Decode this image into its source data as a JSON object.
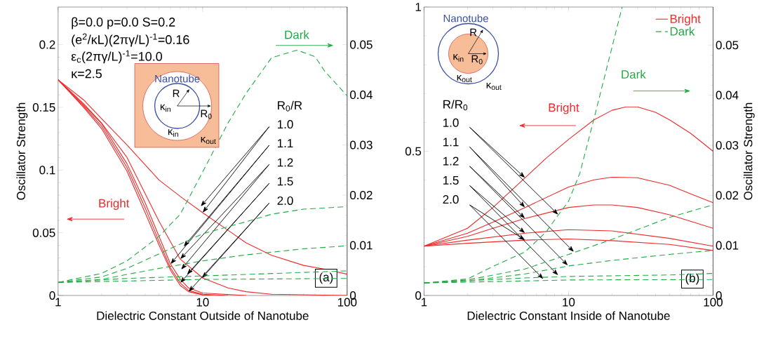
{
  "chart_data": [
    {
      "type": "line",
      "xlabel": "Dielectric Constant Outside of Nanotube",
      "ylabel": "Oscillator Strength",
      "log": "x",
      "xlim": [
        1,
        100
      ],
      "xticks": [
        1,
        10,
        100
      ],
      "ylim": [
        0,
        0.23
      ],
      "yticks": [
        0,
        0.05,
        0.1,
        0.15,
        0.2
      ],
      "y2lim": [
        0,
        0.0575
      ],
      "y2ticks": [
        0,
        0.01,
        0.02,
        0.03,
        0.04,
        0.05
      ],
      "series": [
        {
          "color": "#ee2a2a",
          "line_style": "solid",
          "x": [
            1,
            1.5,
            2,
            3,
            5,
            7,
            10,
            15,
            20,
            30,
            50,
            70,
            100
          ],
          "values": [
            0.172,
            0.156,
            0.141,
            0.12,
            0.092,
            0.079,
            0.066,
            0.052,
            0.042,
            0.032,
            0.024,
            0.021,
            0.017
          ]
        },
        {
          "color": "#ee2a2a",
          "line_style": "solid",
          "x": [
            1,
            1.5,
            2,
            3,
            5,
            7,
            10,
            15,
            20,
            30,
            100
          ],
          "values": [
            0.172,
            0.153,
            0.1375,
            0.11,
            0.059,
            0.029,
            0.014,
            0.006,
            0.003,
            0.001,
            0
          ]
        },
        {
          "color": "#ee2a2a",
          "line_style": "solid",
          "x": [
            1,
            1.5,
            2,
            3,
            4,
            5,
            6,
            7,
            8,
            10,
            20
          ],
          "values": [
            0.172,
            0.152,
            0.137,
            0.105,
            0.074,
            0.047,
            0.025,
            0.013,
            0.006,
            0.002,
            0
          ]
        },
        {
          "color": "#ee2a2a",
          "line_style": "solid",
          "x": [
            1,
            1.5,
            2,
            3,
            4,
            5,
            6,
            7,
            8,
            10,
            15
          ],
          "values": [
            0.172,
            0.151,
            0.135,
            0.102,
            0.07,
            0.043,
            0.022,
            0.01,
            0.004,
            0.001,
            0
          ]
        },
        {
          "color": "#ee2a2a",
          "line_style": "solid",
          "x": [
            1,
            1.5,
            2,
            3,
            4,
            5,
            6,
            7,
            8,
            10,
            12
          ],
          "values": [
            0.172,
            0.15,
            0.133,
            0.099,
            0.066,
            0.04,
            0.02,
            0.008,
            0.003,
            0.0005,
            0
          ]
        },
        {
          "color": "#22aa44",
          "line_style": "dashed",
          "axis": "y2",
          "x": [
            1,
            2,
            3,
            5,
            7,
            10,
            15,
            20,
            30,
            45,
            60,
            70,
            100
          ],
          "values": [
            0.0026,
            0.0044,
            0.0069,
            0.0118,
            0.0162,
            0.0246,
            0.0344,
            0.0403,
            0.0474,
            0.0489,
            0.0476,
            0.0447,
            0.0398
          ]
        },
        {
          "color": "#22aa44",
          "line_style": "dashed",
          "axis": "y2",
          "x": [
            1,
            2,
            3,
            5,
            10,
            20,
            30,
            50,
            100
          ],
          "values": [
            0.0026,
            0.0037,
            0.0054,
            0.0083,
            0.0123,
            0.0147,
            0.0162,
            0.0172,
            0.0177
          ]
        },
        {
          "color": "#22aa44",
          "line_style": "dashed",
          "axis": "y2",
          "x": [
            1,
            2,
            3,
            5,
            10,
            20,
            50,
            100
          ],
          "values": [
            0.0026,
            0.0032,
            0.0042,
            0.0054,
            0.0069,
            0.0081,
            0.0093,
            0.0099
          ]
        },
        {
          "color": "#22aa44",
          "line_style": "dashed",
          "axis": "y2",
          "x": [
            1,
            3,
            10,
            100
          ],
          "values": [
            0.0026,
            0.0034,
            0.0039,
            0.0049
          ]
        },
        {
          "color": "#22aa44",
          "line_style": "dashed",
          "axis": "y2",
          "x": [
            1,
            10,
            100
          ],
          "values": [
            0.0026,
            0.0032,
            0.0034
          ]
        }
      ],
      "annotations": [
        "β=0.0 p=0.0 S=0.2",
        "(e$^{2}$/κL)(2πγ/L)$^{-1}$=0.16",
        "ε$_{c}$(2πγ/L)$^{-1}$=10.0",
        "κ=2.5",
        "Nanotube",
        "R",
        "R$_{0}$",
        "κ$_{in}$",
        "κ$_{in}$",
        "κ$_{out}$",
        "R$_{0}$/R",
        {
          "text": "1.0",
          "x": 10,
          "y": 0.066
        },
        {
          "text": "1.1",
          "x": 6,
          "y": 0.025
        },
        {
          "text": "1.2",
          "x": 7,
          "y": 0.029
        },
        {
          "text": "1.5",
          "x": 7,
          "y": 0.01
        },
        {
          "text": "2.0",
          "x": 8,
          "y": 0.003
        },
        "Bright",
        "Dark",
        "(a)"
      ]
    },
    {
      "type": "line",
      "xlabel": "Dielectric Constant Inside of Nanotube",
      "y2label": "Oscillator Strength",
      "log": "x",
      "legend": "top right",
      "xlim": [
        1,
        100
      ],
      "xticks": [
        1,
        10,
        100
      ],
      "ylim": [
        0,
        1
      ],
      "yticks": [
        0,
        0.5,
        1
      ],
      "y2lim": [
        0,
        0.0576
      ],
      "y2ticks": [
        0,
        0.01,
        0.02,
        0.03,
        0.04,
        0.05
      ],
      "series": [
        {
          "name": "Bright",
          "color": "#ee2a2a",
          "line_style": "solid",
          "x": [
            1,
            2,
            3,
            5,
            7,
            10,
            15,
            20,
            25,
            30,
            40,
            50,
            70,
            100
          ],
          "values": [
            0.171,
            0.233,
            0.305,
            0.408,
            0.476,
            0.541,
            0.609,
            0.642,
            0.654,
            0.654,
            0.635,
            0.609,
            0.562,
            0.5
          ]
        },
        {
          "color": "#ee2a2a",
          "line_style": "solid",
          "x": [
            1,
            2,
            3,
            5,
            10,
            15,
            20,
            30,
            50,
            70,
            100
          ],
          "values": [
            0.171,
            0.216,
            0.254,
            0.305,
            0.376,
            0.401,
            0.41,
            0.408,
            0.382,
            0.352,
            0.322
          ]
        },
        {
          "color": "#ee2a2a",
          "line_style": "solid",
          "x": [
            1,
            2,
            3,
            5,
            10,
            15,
            20,
            30,
            50,
            100
          ],
          "values": [
            0.171,
            0.205,
            0.233,
            0.267,
            0.305,
            0.314,
            0.314,
            0.305,
            0.28,
            0.233
          ]
        },
        {
          "color": "#ee2a2a",
          "line_style": "solid",
          "x": [
            1,
            2,
            5,
            10,
            20,
            50,
            100
          ],
          "values": [
            0.171,
            0.192,
            0.216,
            0.228,
            0.224,
            0.198,
            0.171
          ]
        },
        {
          "color": "#ee2a2a",
          "line_style": "solid",
          "x": [
            1,
            2,
            5,
            10,
            20,
            50,
            100
          ],
          "values": [
            0.171,
            0.181,
            0.192,
            0.196,
            0.19,
            0.177,
            0.156
          ]
        },
        {
          "name": "Dark",
          "color": "#22aa44",
          "line_style": "dashed",
          "axis": "y2",
          "x": [
            1,
            2,
            3,
            5,
            7,
            8.5,
            10,
            12,
            15,
            20,
            23.5
          ],
          "values": [
            0.0025,
            0.0033,
            0.0058,
            0.0087,
            0.0127,
            0.0161,
            0.0188,
            0.0245,
            0.0353,
            0.0496,
            0.0576
          ]
        },
        {
          "color": "#22aa44",
          "line_style": "dashed",
          "axis": "y2",
          "x": [
            1,
            2,
            5,
            10,
            20,
            50,
            100
          ],
          "values": [
            0.0025,
            0.0031,
            0.0053,
            0.0082,
            0.0112,
            0.0156,
            0.0181
          ]
        },
        {
          "color": "#22aa44",
          "line_style": "dashed",
          "axis": "y2",
          "x": [
            1,
            2,
            5,
            10,
            20,
            50,
            100
          ],
          "values": [
            0.0025,
            0.0029,
            0.0043,
            0.0059,
            0.007,
            0.0082,
            0.009
          ]
        },
        {
          "color": "#22aa44",
          "line_style": "dashed",
          "axis": "y2",
          "x": [
            1,
            5,
            10,
            50,
            100
          ],
          "values": [
            0.0025,
            0.0035,
            0.0038,
            0.0041,
            0.0044
          ]
        },
        {
          "color": "#22aa44",
          "line_style": "dashed",
          "axis": "y2",
          "x": [
            1,
            5,
            10,
            100
          ],
          "values": [
            0.0025,
            0.0029,
            0.0031,
            0.0032
          ]
        }
      ],
      "annotations": [
        "Nanotube",
        "R",
        "R$_{0}$",
        "κ$_{in}$",
        "κ$_{out}$",
        "κ$_{out}$",
        "R/R$_{0}$",
        {
          "text": "1.0",
          "x": 5,
          "y": 0.408
        },
        {
          "text": "1.1",
          "x": 5,
          "y": 0.305
        },
        {
          "text": "1.2",
          "x": 5,
          "y": 0.267
        },
        {
          "text": "1.5",
          "x": 5,
          "y": 0.216
        },
        {
          "text": "2.0",
          "x": 5,
          "y": 0.192
        },
        "Bright",
        "Dark",
        "(b)"
      ]
    }
  ]
}
